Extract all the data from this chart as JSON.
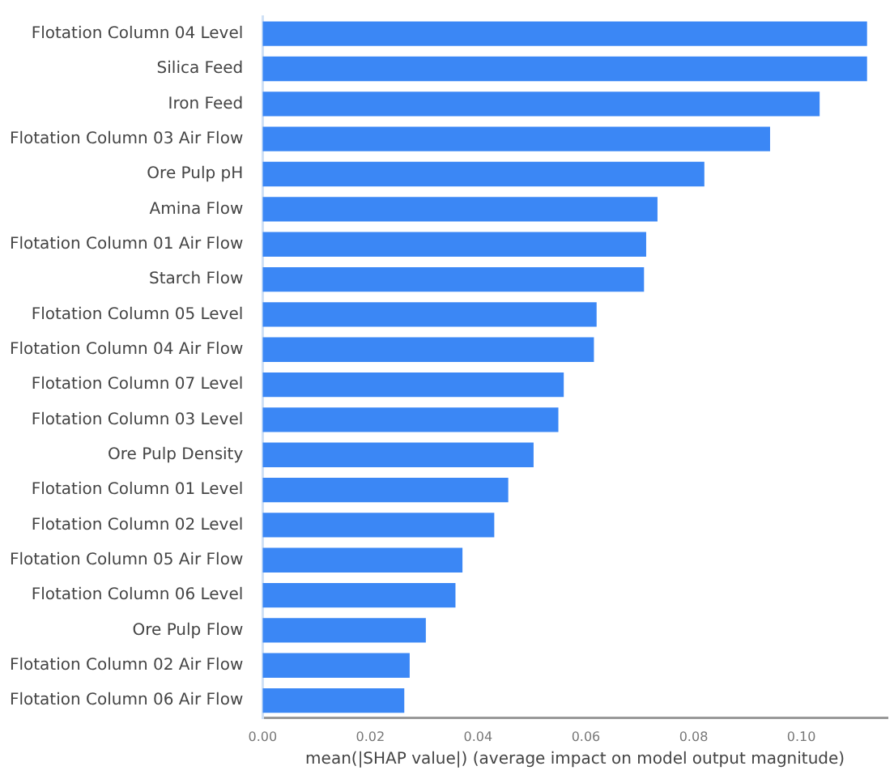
{
  "chart_data": {
    "type": "bar",
    "orientation": "horizontal",
    "xlabel": "mean(|SHAP value|) (average impact on model output magnitude)",
    "categories": [
      "Flotation Column 04 Level",
      "Silica Feed",
      "Iron Feed",
      "Flotation Column 03 Air Flow",
      "Ore Pulp pH",
      "Amina Flow",
      "Flotation Column 01 Air Flow",
      "Starch Flow",
      "Flotation Column 05 Level",
      "Flotation Column 04 Air Flow",
      "Flotation Column 07 Level",
      "Flotation Column 03 Level",
      "Ore Pulp Density",
      "Flotation Column 01 Level",
      "Flotation Column 02 Level",
      "Flotation Column 05 Air Flow",
      "Flotation Column 06 Level",
      "Ore Pulp Flow",
      "Flotation Column 02 Air Flow",
      "Flotation Column 06 Air Flow"
    ],
    "values": [
      0.1122,
      0.1122,
      0.1034,
      0.0942,
      0.082,
      0.0733,
      0.0712,
      0.0708,
      0.062,
      0.0615,
      0.0559,
      0.0549,
      0.0503,
      0.0456,
      0.043,
      0.0371,
      0.0358,
      0.0303,
      0.0273,
      0.0263
    ],
    "color": "#3b87f5",
    "xlim": [
      0,
      0.116
    ],
    "xticks": [
      {
        "value": 0,
        "label": "0.00"
      },
      {
        "value": 0.02,
        "label": "0.02"
      },
      {
        "value": 0.04,
        "label": "0.04"
      },
      {
        "value": 0.06,
        "label": "0.06"
      },
      {
        "value": 0.08,
        "label": "0.08"
      },
      {
        "value": 0.1,
        "label": "0.10"
      }
    ],
    "grid": false,
    "legend": false
  }
}
